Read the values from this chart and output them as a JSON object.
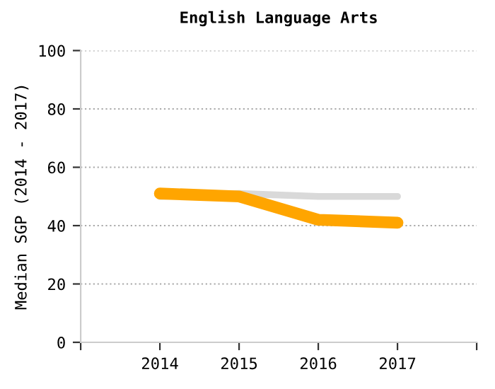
{
  "chart_data": {
    "type": "line",
    "title": "English Language Arts",
    "ylabel": "Median SGP (2014 - 2017)",
    "x": [
      2014,
      2015,
      2016,
      2017
    ],
    "series": [
      {
        "color": "#d9d9d9",
        "values": [
          50,
          51,
          50,
          50
        ]
      },
      {
        "color": "#ffa500",
        "values": [
          51,
          50,
          42,
          41
        ]
      }
    ],
    "xlim": [
      2013,
      2018
    ],
    "xticks": [
      {
        "value": 2013,
        "label": null
      },
      2014,
      2015,
      2016,
      2017,
      {
        "value": 2018,
        "label": null
      }
    ],
    "ylim": [
      0,
      100
    ],
    "yticks": [
      0,
      20,
      40,
      60,
      80,
      100
    ],
    "grid": "y",
    "legend": false,
    "marker": "none",
    "line_style": "solid"
  }
}
